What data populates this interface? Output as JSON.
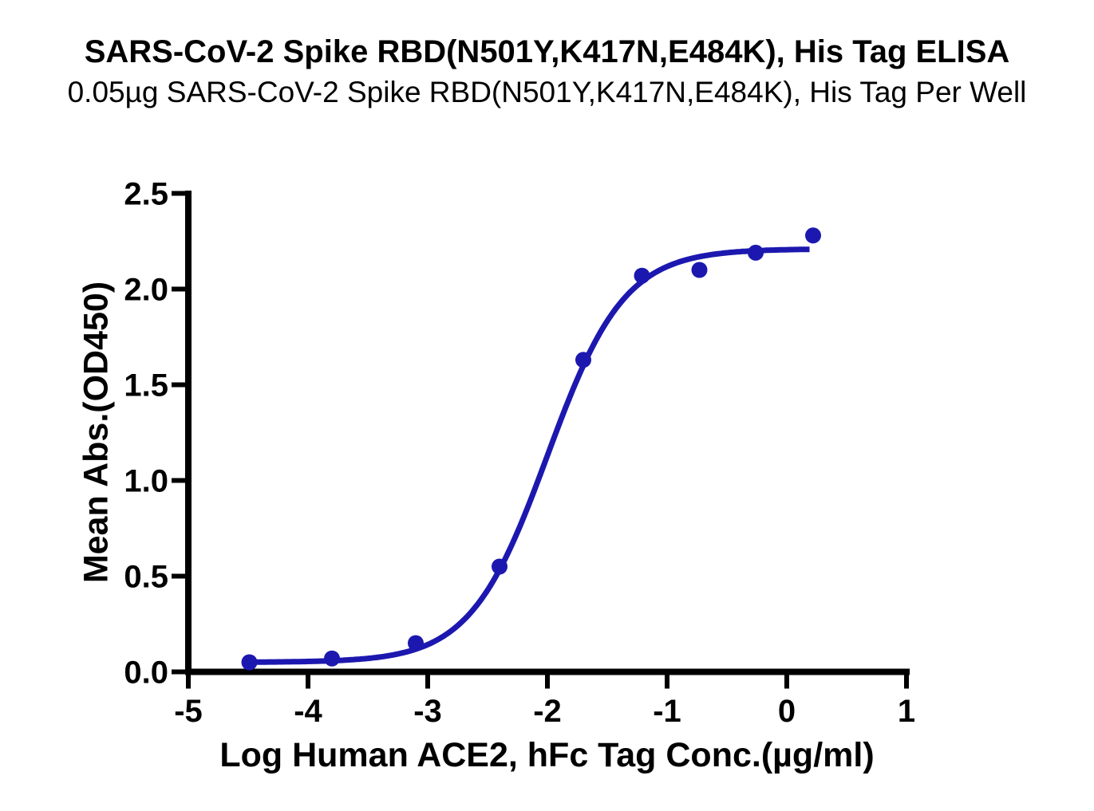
{
  "header": {
    "title": "SARS-CoV-2 Spike RBD(N501Y,K417N,E484K), His Tag ELISA",
    "subtitle": "0.05µg SARS-CoV-2 Spike RBD(N501Y,K417N,E484K), His Tag Per Well"
  },
  "chart_data": {
    "type": "scatter",
    "title": "SARS-CoV-2 Spike RBD(N501Y,K417N,E484K), His Tag ELISA",
    "subtitle": "0.05µg SARS-CoV-2 Spike RBD(N501Y,K417N,E484K), His Tag Per Well",
    "xlabel": "Log Human ACE2, hFc Tag Conc.(µg/ml)",
    "ylabel": "Mean Abs.(OD450)",
    "xlim": [
      -5,
      1
    ],
    "ylim": [
      0,
      2.5
    ],
    "x_ticks": [
      -5,
      -4,
      -3,
      -2,
      -1,
      0,
      1
    ],
    "x_tick_labels": [
      "-5",
      "-4",
      "-3",
      "-2",
      "-1",
      "0",
      "1"
    ],
    "y_ticks": [
      0,
      0.5,
      1,
      1.5,
      2,
      2.5
    ],
    "y_tick_labels": [
      "0.0",
      "0.5",
      "1.0",
      "1.5",
      "2.0",
      "2.5"
    ],
    "grid": false,
    "legend": null,
    "points": {
      "log_conc": [
        -4.49,
        -3.8,
        -3.1,
        -2.4,
        -1.7,
        -1.21,
        -0.73,
        -0.26,
        0.22
      ],
      "od450": [
        0.05,
        0.07,
        0.15,
        0.55,
        1.63,
        2.07,
        2.1,
        2.19,
        2.28
      ]
    },
    "fit_curve": {
      "model": "4PL",
      "bottom": 0.05,
      "top": 2.21,
      "log_ec50": -2.0,
      "hill_slope": 1.35,
      "x_range": [
        -4.49,
        0.19
      ]
    },
    "colors": {
      "series": "#1c18af",
      "axis": "#000000",
      "text": "#000000",
      "background": "#ffffff"
    }
  }
}
